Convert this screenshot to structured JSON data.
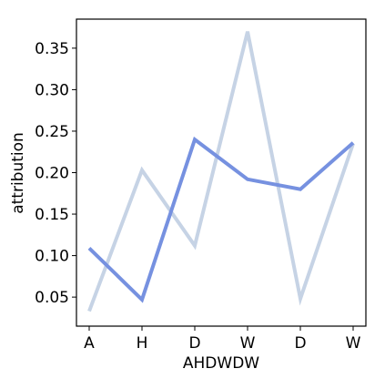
{
  "chart_data": {
    "type": "line",
    "title": "",
    "xlabel": "AHDWDW",
    "ylabel": "attribution",
    "categories": [
      "A",
      "H",
      "D",
      "W",
      "D",
      "W"
    ],
    "ylim": [
      0.015,
      0.385
    ],
    "yticks": [
      "0.05",
      "0.10",
      "0.15",
      "0.20",
      "0.25",
      "0.30",
      "0.35"
    ],
    "grid": false,
    "legend": "none",
    "series": [
      {
        "values": [
          0.033,
          0.203,
          0.112,
          0.37,
          0.048,
          0.235
        ],
        "color": "#c6d3e5"
      },
      {
        "values": [
          0.109,
          0.047,
          0.24,
          0.192,
          0.18,
          0.236
        ],
        "color": "#7691e0"
      }
    ]
  }
}
